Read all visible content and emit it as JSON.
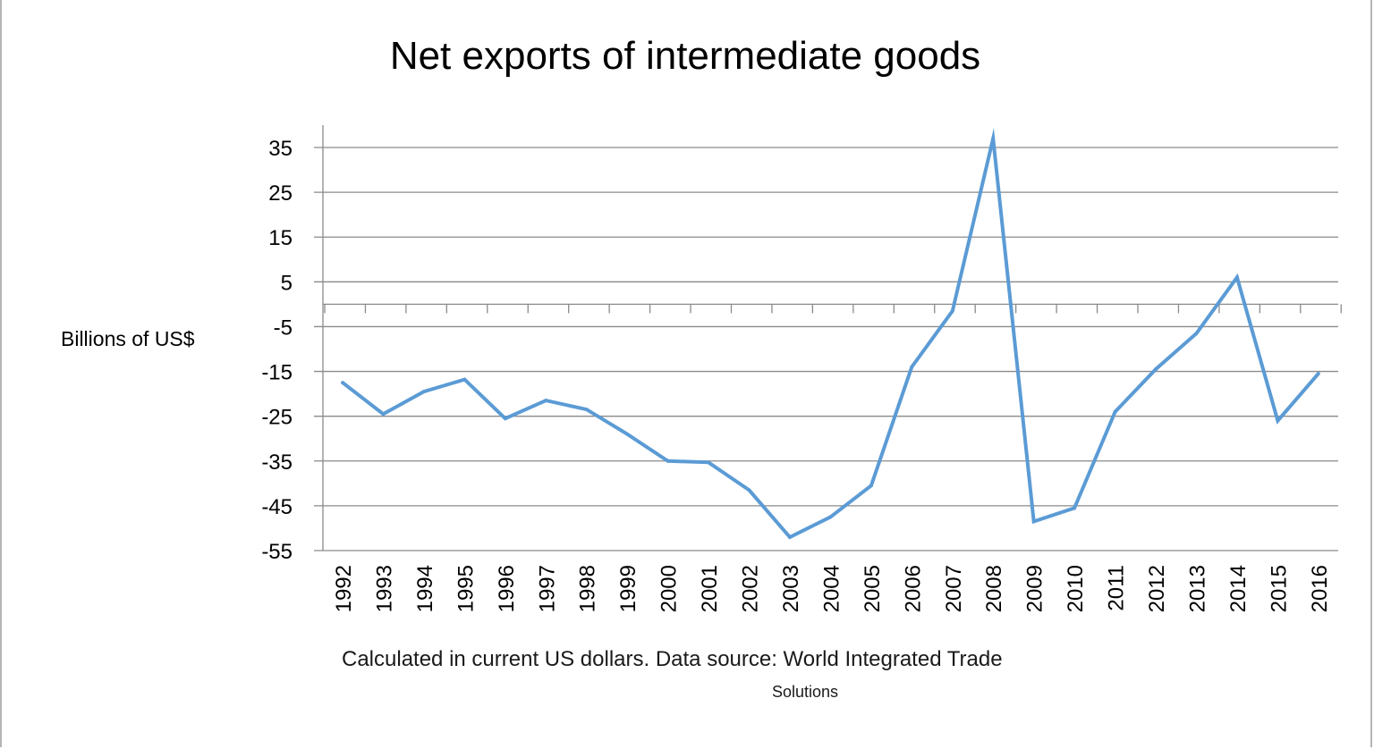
{
  "chart_data": {
    "type": "line",
    "title": "Net exports of intermediate goods",
    "ylabel": "Billions of US$",
    "xlabel": "",
    "note_line1": "Calculated in current US dollars. Data source: World Integrated Trade",
    "note_line2": "Solutions",
    "ylim": [
      -55,
      40
    ],
    "yticks": [
      35,
      25,
      15,
      5,
      -5,
      -15,
      -25,
      -35,
      -45,
      -55
    ],
    "grid": true,
    "legend": "none",
    "line_color": "#5b9bd5",
    "categories": [
      "1992",
      "1993",
      "1994",
      "1995",
      "1996",
      "1997",
      "1998",
      "1999",
      "2000",
      "2001",
      "2002",
      "2003",
      "2004",
      "2005",
      "2006",
      "2007",
      "2008",
      "2009",
      "2010",
      "2011",
      "2012",
      "2013",
      "2014",
      "2015",
      "2016"
    ],
    "values": [
      -17.5,
      -24.5,
      -19.5,
      -16.8,
      -25.5,
      -21.5,
      -23.5,
      -29,
      -35,
      -35.3,
      -41.5,
      -52,
      -47.5,
      -40.5,
      -14,
      -1.5,
      37,
      -48.5,
      -45.5,
      -24,
      -14.5,
      -6.5,
      6,
      -26,
      -15.5
    ]
  }
}
